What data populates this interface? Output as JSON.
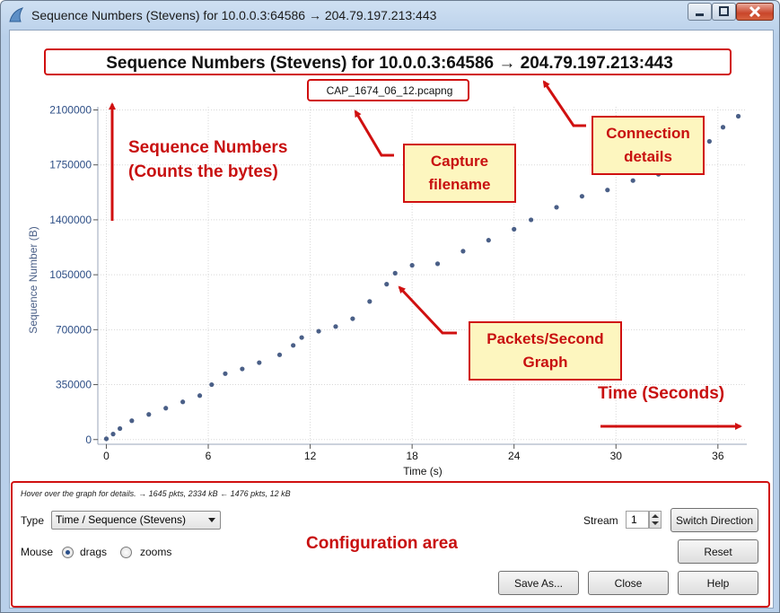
{
  "window": {
    "title": "Sequence Numbers (Stevens) for 10.0.0.3:64586 → 204.79.197.213:443"
  },
  "graph": {
    "heading": "Sequence Numbers (Stevens) for 10.0.0.3:64586 → 204.79.197.213:443",
    "filename": "CAP_1674_06_12.pcapng",
    "point_color": "#4a5f87"
  },
  "chart_data": {
    "type": "scatter",
    "title": "Sequence Numbers (Stevens) for 10.0.0.3:64586 → 204.79.197.213:443",
    "subtitle": "CAP_1674_06_12.pcapng",
    "xlabel": "Time (s)",
    "ylabel": "Sequence Number (B)",
    "xlim": [
      -0.5,
      37.7
    ],
    "ylim": [
      -30000,
      2120000
    ],
    "x_ticks": [
      0,
      6,
      12,
      18,
      24,
      30,
      36
    ],
    "y_ticks": [
      0,
      350000,
      700000,
      1050000,
      1400000,
      1750000,
      2100000
    ],
    "grid": true,
    "series": [
      {
        "points": [
          [
            0,
            5000
          ],
          [
            0.4,
            35000
          ],
          [
            0.8,
            70000
          ],
          [
            1.5,
            120000
          ],
          [
            2.5,
            160000
          ],
          [
            3.5,
            200000
          ],
          [
            4.5,
            240000
          ],
          [
            5.5,
            280000
          ],
          [
            6.2,
            350000
          ],
          [
            7,
            420000
          ],
          [
            8,
            450000
          ],
          [
            9,
            490000
          ],
          [
            10.2,
            540000
          ],
          [
            11,
            600000
          ],
          [
            11.5,
            650000
          ],
          [
            12.5,
            690000
          ],
          [
            13.5,
            720000
          ],
          [
            14.5,
            770000
          ],
          [
            15.5,
            880000
          ],
          [
            16.5,
            990000
          ],
          [
            17,
            1060000
          ],
          [
            18,
            1110000
          ],
          [
            19.5,
            1120000
          ],
          [
            21,
            1200000
          ],
          [
            22.5,
            1270000
          ],
          [
            24,
            1340000
          ],
          [
            25,
            1400000
          ],
          [
            26.5,
            1480000
          ],
          [
            28,
            1550000
          ],
          [
            29.5,
            1590000
          ],
          [
            31,
            1650000
          ],
          [
            32.5,
            1690000
          ],
          [
            33.5,
            1730000
          ],
          [
            34.5,
            1800000
          ],
          [
            35.5,
            1900000
          ],
          [
            36.3,
            1990000
          ],
          [
            37.2,
            2060000
          ]
        ]
      }
    ]
  },
  "info": {
    "hover_text": "Hover over the graph for details. → 1645 pkts, 2334 kB ← 1476 pkts, 12 kB"
  },
  "controls": {
    "type_label": "Type",
    "type_value": "Time / Sequence (Stevens)",
    "stream_label": "Stream",
    "stream_value": "1",
    "switch_direction": "Switch Direction",
    "mouse_label": "Mouse",
    "drags_label": "drags",
    "zooms_label": "zooms",
    "mouse_mode": "drags",
    "reset": "Reset",
    "save_as": "Save As...",
    "close": "Close",
    "help": "Help"
  },
  "annotations": {
    "seq_line1": "Sequence Numbers",
    "seq_line2": "(Counts the bytes)",
    "capture_line1": "Capture",
    "capture_line2": "filename",
    "connection_line1": "Connection",
    "connection_line2": "details",
    "packets_line1": "Packets/Second",
    "packets_line2": "Graph",
    "time_label": "Time (Seconds)",
    "config_label": "Configuration area",
    "accent_color": "#d01010"
  }
}
